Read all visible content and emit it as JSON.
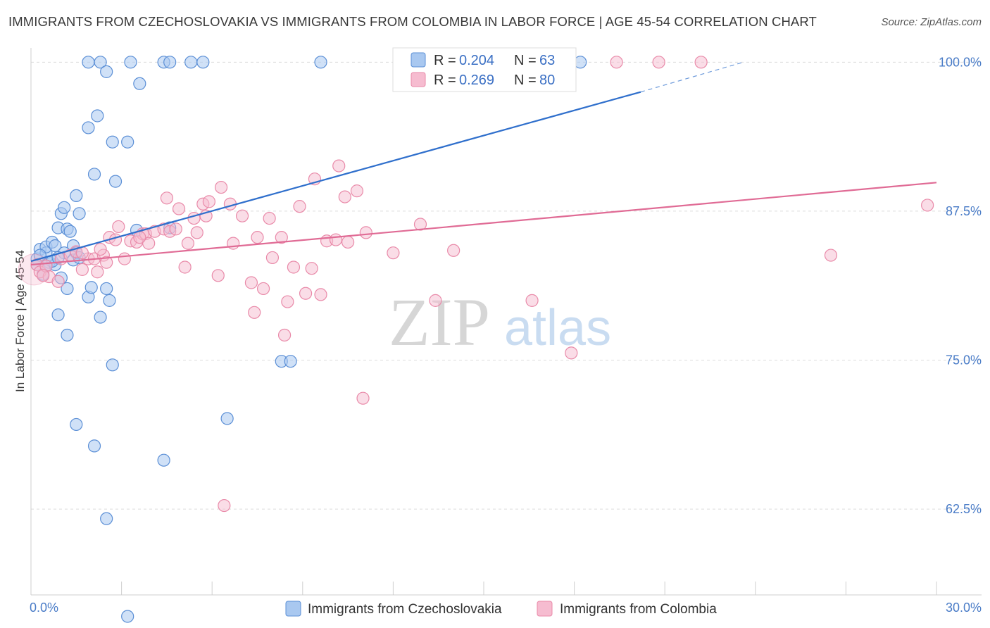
{
  "title": "IMMIGRANTS FROM CZECHOSLOVAKIA VS IMMIGRANTS FROM COLOMBIA IN LABOR FORCE | AGE 45-54 CORRELATION CHART",
  "source": "Source: ZipAtlas.com",
  "watermark": {
    "zip": "ZIP",
    "atlas": "atlas"
  },
  "colors": {
    "blue_fill": "#a9c8f0",
    "blue_stroke": "#5b8fd6",
    "blue_line": "#2f6fcc",
    "pink_fill": "#f6bcd0",
    "pink_stroke": "#e98aa9",
    "pink_line": "#e06b95"
  },
  "legend": {
    "rows": [
      {
        "r_label": "R = ",
        "r_value": "0.204",
        "n_label": "N = ",
        "n_value": "63"
      },
      {
        "r_label": "R = ",
        "r_value": "0.269",
        "n_label": "N = ",
        "n_value": "80"
      }
    ]
  },
  "chart_data": {
    "type": "scatter",
    "title": "IMMIGRANTS FROM CZECHOSLOVAKIA VS IMMIGRANTS FROM COLOMBIA IN LABOR FORCE | AGE 45-54 CORRELATION CHART",
    "xlabel": "",
    "ylabel": "In Labor Force | Age 45-54",
    "xlim": [
      0,
      30
    ],
    "ylim": [
      55.3,
      101.2
    ],
    "x_tick_labels": [
      "0.0%",
      "30.0%"
    ],
    "y_ticks": [
      100,
      87.5,
      75,
      62.5
    ],
    "y_tick_labels": [
      "100.0%",
      "87.5%",
      "75.0%",
      "62.5%"
    ],
    "grid": true,
    "legend_position": "top-center",
    "series": [
      {
        "name": "Immigrants from Czechoslovakia",
        "color": "#5b8fd6",
        "trend": {
          "x": [
            0,
            20.2
          ],
          "y": [
            83.3,
            97.5
          ],
          "dashed_to": [
            23.6,
            100
          ]
        },
        "points": [
          [
            0.2,
            83.5
          ],
          [
            0.3,
            84.3
          ],
          [
            0.5,
            84.0
          ],
          [
            0.5,
            84.5
          ],
          [
            0.7,
            84.9
          ],
          [
            0.8,
            84.6
          ],
          [
            0.9,
            86.1
          ],
          [
            1.0,
            87.3
          ],
          [
            1.1,
            87.8
          ],
          [
            1.2,
            86.0
          ],
          [
            1.3,
            85.8
          ],
          [
            1.4,
            84.6
          ],
          [
            1.5,
            84.0
          ],
          [
            1.5,
            88.8
          ],
          [
            1.6,
            87.3
          ],
          [
            0.2,
            83.0
          ],
          [
            0.4,
            82.2
          ],
          [
            0.6,
            83.2
          ],
          [
            0.8,
            83.0
          ],
          [
            1.0,
            81.9
          ],
          [
            1.2,
            81.0
          ],
          [
            1.4,
            83.4
          ],
          [
            1.6,
            83.6
          ],
          [
            1.9,
            80.3
          ],
          [
            2.0,
            81.1
          ],
          [
            2.3,
            78.6
          ],
          [
            2.5,
            81.0
          ],
          [
            2.6,
            80.0
          ],
          [
            0.9,
            78.8
          ],
          [
            1.2,
            77.1
          ],
          [
            1.9,
            100
          ],
          [
            2.3,
            100
          ],
          [
            2.5,
            99.2
          ],
          [
            3.3,
            100
          ],
          [
            3.6,
            98.2
          ],
          [
            4.4,
            100
          ],
          [
            4.6,
            100
          ],
          [
            5.3,
            100
          ],
          [
            5.7,
            100
          ],
          [
            9.6,
            100
          ],
          [
            18.2,
            100
          ],
          [
            2.2,
            95.5
          ],
          [
            1.9,
            94.5
          ],
          [
            2.7,
            93.3
          ],
          [
            3.2,
            93.3
          ],
          [
            2.1,
            90.6
          ],
          [
            2.8,
            90.0
          ],
          [
            3.5,
            85.9
          ],
          [
            4.6,
            86.1
          ],
          [
            2.7,
            74.6
          ],
          [
            8.3,
            74.9
          ],
          [
            8.6,
            74.9
          ],
          [
            1.5,
            69.6
          ],
          [
            2.1,
            67.8
          ],
          [
            6.5,
            70.1
          ],
          [
            4.4,
            66.6
          ],
          [
            2.5,
            61.7
          ],
          [
            3.2,
            53.5
          ],
          [
            0.7,
            83.3
          ],
          [
            1.1,
            84.0
          ],
          [
            0.3,
            83.8
          ],
          [
            0.5,
            82.9
          ],
          [
            0.9,
            83.6
          ]
        ]
      },
      {
        "name": "Immigrants from Colombia",
        "color": "#e98aa9",
        "trend": {
          "x": [
            0,
            30
          ],
          "y": [
            83.0,
            89.9
          ]
        },
        "points": [
          [
            0.2,
            83.0
          ],
          [
            0.3,
            82.4
          ],
          [
            0.5,
            82.9
          ],
          [
            0.6,
            82.0
          ],
          [
            0.9,
            81.6
          ],
          [
            1.0,
            83.5
          ],
          [
            1.3,
            83.8
          ],
          [
            1.5,
            84.1
          ],
          [
            1.7,
            82.6
          ],
          [
            1.9,
            83.5
          ],
          [
            2.1,
            83.5
          ],
          [
            2.2,
            82.4
          ],
          [
            2.4,
            83.8
          ],
          [
            2.5,
            83.2
          ],
          [
            2.6,
            85.3
          ],
          [
            2.8,
            85.1
          ],
          [
            2.9,
            86.2
          ],
          [
            3.1,
            83.5
          ],
          [
            3.3,
            85.0
          ],
          [
            3.5,
            84.9
          ],
          [
            3.7,
            85.6
          ],
          [
            3.8,
            85.6
          ],
          [
            3.9,
            84.8
          ],
          [
            4.1,
            85.8
          ],
          [
            4.4,
            86.0
          ],
          [
            4.5,
            88.6
          ],
          [
            4.6,
            85.8
          ],
          [
            4.8,
            86.0
          ],
          [
            4.9,
            87.7
          ],
          [
            5.1,
            82.8
          ],
          [
            5.2,
            84.8
          ],
          [
            5.4,
            86.9
          ],
          [
            5.5,
            85.7
          ],
          [
            5.7,
            88.1
          ],
          [
            5.8,
            87.1
          ],
          [
            5.9,
            88.3
          ],
          [
            6.2,
            82.1
          ],
          [
            6.3,
            89.5
          ],
          [
            6.6,
            88.1
          ],
          [
            6.7,
            84.8
          ],
          [
            7.0,
            87.1
          ],
          [
            7.3,
            81.5
          ],
          [
            7.4,
            79.0
          ],
          [
            7.5,
            85.3
          ],
          [
            7.7,
            81.0
          ],
          [
            7.9,
            86.9
          ],
          [
            8.0,
            83.6
          ],
          [
            8.3,
            85.3
          ],
          [
            8.4,
            77.1
          ],
          [
            8.5,
            79.9
          ],
          [
            8.7,
            82.8
          ],
          [
            8.9,
            87.9
          ],
          [
            9.1,
            80.6
          ],
          [
            9.3,
            82.7
          ],
          [
            9.4,
            90.2
          ],
          [
            9.6,
            80.5
          ],
          [
            9.8,
            85.0
          ],
          [
            10.1,
            85.1
          ],
          [
            10.2,
            91.3
          ],
          [
            10.4,
            88.7
          ],
          [
            10.5,
            84.9
          ],
          [
            10.8,
            89.2
          ],
          [
            11.1,
            85.7
          ],
          [
            11.0,
            71.8
          ],
          [
            12.0,
            84.0
          ],
          [
            12.9,
            86.4
          ],
          [
            13.4,
            80.0
          ],
          [
            14.0,
            84.2
          ],
          [
            16.6,
            80.0
          ],
          [
            17.9,
            75.6
          ],
          [
            19.4,
            100
          ],
          [
            20.8,
            100
          ],
          [
            22.2,
            100
          ],
          [
            26.5,
            83.8
          ],
          [
            29.7,
            88.0
          ],
          [
            6.4,
            62.8
          ],
          [
            1.7,
            84.0
          ],
          [
            2.3,
            84.3
          ],
          [
            3.6,
            85.3
          ],
          [
            0.4,
            82.1
          ]
        ]
      }
    ]
  },
  "bottom_legend": [
    {
      "label": "Immigrants from Czechoslovakia"
    },
    {
      "label": "Immigrants from Colombia"
    }
  ]
}
